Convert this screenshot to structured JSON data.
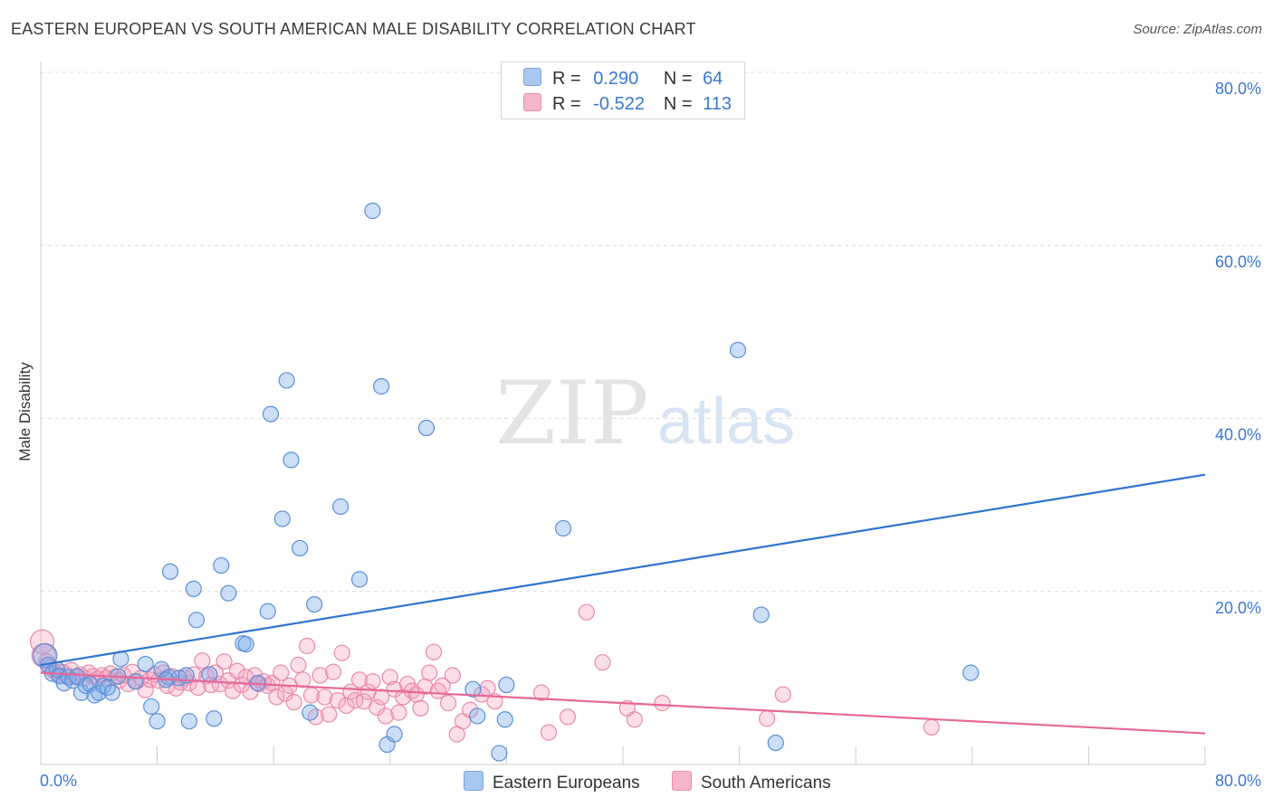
{
  "header": {
    "title": "EASTERN EUROPEAN VS SOUTH AMERICAN MALE DISABILITY CORRELATION CHART",
    "source": "Source: ZipAtlas.com"
  },
  "watermark": {
    "zip": "ZIP",
    "atlas": "atlas"
  },
  "legend": {
    "rows": [
      {
        "r_label": "R =",
        "r_value": "0.290",
        "n_label": "N =",
        "n_value": "64",
        "color": "#a9c8f0"
      },
      {
        "r_label": "R =",
        "r_value": "-0.522",
        "n_label": "N =",
        "n_value": "113",
        "color": "#f5b6ca"
      }
    ]
  },
  "bottom_legend": [
    {
      "label": "Eastern Europeans",
      "color": "#a9c8f0"
    },
    {
      "label": "South Americans",
      "color": "#f5b6ca"
    }
  ],
  "colors": {
    "blue_fill": "rgba(120,170,235,0.38)",
    "blue_stroke": "#5b8fd8",
    "blue_line": "#2f74d0",
    "pink_fill": "rgba(245,160,190,0.35)",
    "pink_stroke": "#e88aaa",
    "pink_line": "#e8679a",
    "tick_label": "#3a78d4"
  },
  "chart_data": {
    "type": "scatter",
    "xlabel": "",
    "ylabel": "Male Disability",
    "xlim": [
      0,
      80
    ],
    "ylim": [
      0,
      80
    ],
    "x_tick_labels": [
      "0.0%",
      "80.0%"
    ],
    "y_ticks": [
      20,
      40,
      60,
      80
    ],
    "y_tick_labels": [
      "20.0%",
      "40.0%",
      "60.0%",
      "80.0%"
    ],
    "grid": true,
    "series": [
      {
        "name": "Eastern Europeans",
        "trendline": [
          [
            0,
            11.5
          ],
          [
            80,
            33.5
          ]
        ],
        "points": [
          [
            0.3,
            12.6
          ],
          [
            0.5,
            11.5
          ],
          [
            0.8,
            10.5
          ],
          [
            1.1,
            11
          ],
          [
            1.3,
            10.2
          ],
          [
            1.6,
            9.4
          ],
          [
            1.9,
            10.1
          ],
          [
            2.2,
            9.7
          ],
          [
            2.5,
            10.2
          ],
          [
            2.8,
            8.3
          ],
          [
            3.1,
            9.1
          ],
          [
            3.4,
            9.3
          ],
          [
            3.7,
            8.0
          ],
          [
            4.0,
            8.3
          ],
          [
            4.3,
            9.1
          ],
          [
            4.6,
            8.9
          ],
          [
            4.9,
            8.3
          ],
          [
            5.3,
            10.2
          ],
          [
            6.5,
            9.6
          ],
          [
            7.2,
            11.6
          ],
          [
            8.3,
            11
          ],
          [
            8.8,
            10.1
          ],
          [
            9.5,
            10.0
          ],
          [
            10.0,
            10.3
          ],
          [
            5.5,
            12.2
          ],
          [
            7.6,
            6.7
          ],
          [
            8.0,
            5.0
          ],
          [
            10.2,
            5.0
          ],
          [
            11.9,
            5.3
          ],
          [
            8.9,
            22.3
          ],
          [
            10.5,
            20.3
          ],
          [
            10.7,
            16.7
          ],
          [
            12.4,
            23.0
          ],
          [
            12.9,
            19.8
          ],
          [
            13.9,
            14.0
          ],
          [
            14.1,
            13.9
          ],
          [
            15.6,
            17.7
          ],
          [
            15.8,
            40.5
          ],
          [
            16.6,
            28.4
          ],
          [
            16.9,
            44.4
          ],
          [
            17.2,
            35.2
          ],
          [
            17.8,
            25.0
          ],
          [
            18.8,
            18.5
          ],
          [
            20.6,
            29.8
          ],
          [
            21.9,
            21.4
          ],
          [
            22.8,
            64.0
          ],
          [
            23.4,
            43.7
          ],
          [
            23.8,
            2.3
          ],
          [
            24.3,
            3.5
          ],
          [
            26.5,
            38.9
          ],
          [
            29.7,
            8.7
          ],
          [
            31.5,
            1.3
          ],
          [
            31.9,
            5.2
          ],
          [
            35.9,
            27.3
          ],
          [
            47.9,
            47.9
          ],
          [
            49.5,
            17.3
          ],
          [
            50.5,
            2.5
          ],
          [
            63.9,
            10.6
          ],
          [
            30.0,
            5.6
          ],
          [
            18.5,
            6.0
          ],
          [
            14.9,
            9.4
          ],
          [
            8.6,
            9.8
          ],
          [
            11.6,
            10.4
          ],
          [
            32.0,
            9.2
          ]
        ]
      },
      {
        "name": "South Americans",
        "trendline": [
          [
            0,
            10.6
          ],
          [
            80,
            3.6
          ]
        ],
        "points": [
          [
            0.1,
            14.2
          ],
          [
            0.2,
            12.6
          ],
          [
            0.4,
            11.9
          ],
          [
            0.6,
            11.2
          ],
          [
            0.9,
            10.8
          ],
          [
            1.2,
            10.4
          ],
          [
            1.5,
            10.7
          ],
          [
            1.8,
            10.3
          ],
          [
            2.1,
            10.9
          ],
          [
            2.4,
            10.1
          ],
          [
            2.7,
            10.4
          ],
          [
            3.0,
            10.0
          ],
          [
            3.3,
            10.6
          ],
          [
            3.6,
            10.2
          ],
          [
            3.9,
            9.9
          ],
          [
            4.2,
            10.3
          ],
          [
            4.5,
            10.0
          ],
          [
            4.8,
            10.5
          ],
          [
            5.1,
            10.1
          ],
          [
            5.4,
            9.7
          ],
          [
            5.7,
            10.3
          ],
          [
            6.0,
            9.3
          ],
          [
            6.3,
            10.7
          ],
          [
            6.6,
            9.6
          ],
          [
            6.9,
            10.0
          ],
          [
            7.2,
            8.6
          ],
          [
            7.5,
            9.8
          ],
          [
            7.8,
            10.4
          ],
          [
            8.1,
            9.7
          ],
          [
            8.4,
            10.6
          ],
          [
            8.7,
            9.1
          ],
          [
            9.0,
            10.2
          ],
          [
            9.3,
            8.8
          ],
          [
            9.6,
            9.5
          ],
          [
            9.9,
            10.0
          ],
          [
            10.2,
            9.4
          ],
          [
            10.5,
            10.4
          ],
          [
            10.8,
            8.9
          ],
          [
            11.1,
            12.0
          ],
          [
            11.4,
            10.2
          ],
          [
            11.7,
            9.2
          ],
          [
            12.0,
            10.6
          ],
          [
            12.3,
            9.3
          ],
          [
            12.6,
            11.9
          ],
          [
            12.9,
            9.7
          ],
          [
            13.2,
            8.5
          ],
          [
            13.5,
            10.8
          ],
          [
            13.8,
            9.2
          ],
          [
            14.1,
            10.1
          ],
          [
            14.4,
            8.4
          ],
          [
            14.7,
            10.3
          ],
          [
            15.0,
            9.3
          ],
          [
            15.3,
            9.6
          ],
          [
            15.6,
            9.1
          ],
          [
            15.9,
            9.4
          ],
          [
            16.2,
            7.8
          ],
          [
            16.5,
            10.6
          ],
          [
            16.8,
            8.2
          ],
          [
            17.1,
            9.1
          ],
          [
            17.4,
            7.2
          ],
          [
            17.7,
            11.5
          ],
          [
            18.0,
            9.8
          ],
          [
            18.3,
            13.7
          ],
          [
            18.6,
            8.0
          ],
          [
            18.9,
            5.5
          ],
          [
            19.2,
            10.3
          ],
          [
            19.5,
            7.8
          ],
          [
            19.8,
            5.8
          ],
          [
            20.1,
            10.7
          ],
          [
            20.4,
            7.4
          ],
          [
            20.7,
            12.9
          ],
          [
            21.0,
            6.8
          ],
          [
            21.3,
            8.4
          ],
          [
            21.6,
            7.4
          ],
          [
            21.9,
            9.8
          ],
          [
            22.2,
            7.3
          ],
          [
            22.5,
            8.4
          ],
          [
            22.8,
            9.6
          ],
          [
            23.1,
            6.6
          ],
          [
            23.4,
            7.8
          ],
          [
            23.7,
            5.6
          ],
          [
            24.0,
            10.1
          ],
          [
            24.3,
            8.7
          ],
          [
            24.6,
            6.0
          ],
          [
            24.9,
            7.8
          ],
          [
            25.2,
            9.3
          ],
          [
            25.5,
            8.5
          ],
          [
            25.8,
            8.1
          ],
          [
            26.1,
            6.5
          ],
          [
            26.4,
            9.0
          ],
          [
            26.7,
            10.6
          ],
          [
            27.0,
            13.0
          ],
          [
            27.3,
            8.5
          ],
          [
            27.6,
            9.1
          ],
          [
            28.0,
            7.1
          ],
          [
            28.3,
            10.3
          ],
          [
            28.6,
            3.5
          ],
          [
            29.0,
            5.0
          ],
          [
            29.5,
            6.3
          ],
          [
            30.3,
            8.1
          ],
          [
            31.2,
            7.3
          ],
          [
            34.4,
            8.3
          ],
          [
            34.9,
            3.7
          ],
          [
            36.2,
            5.5
          ],
          [
            37.5,
            17.6
          ],
          [
            38.6,
            11.8
          ],
          [
            40.3,
            6.5
          ],
          [
            40.8,
            5.2
          ],
          [
            42.7,
            7.1
          ],
          [
            49.9,
            5.3
          ],
          [
            51.0,
            8.1
          ],
          [
            61.2,
            4.3
          ],
          [
            30.7,
            8.8
          ]
        ]
      }
    ]
  }
}
